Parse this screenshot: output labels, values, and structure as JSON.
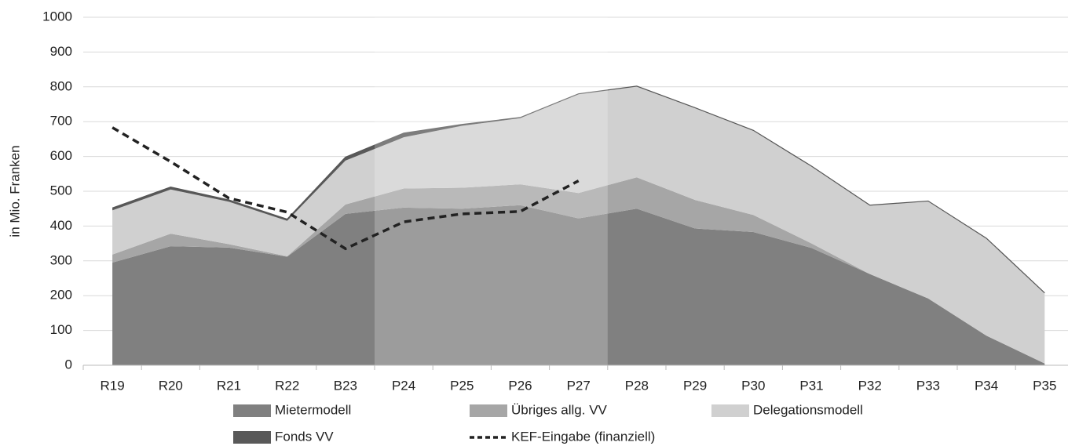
{
  "chart_data": {
    "type": "stacked_area",
    "y_label": "in Mio. Franken",
    "categories": [
      "R19",
      "R20",
      "R21",
      "R22",
      "B23",
      "P24",
      "P25",
      "P26",
      "P27",
      "P28",
      "P29",
      "P30",
      "P31",
      "P32",
      "P33",
      "P34",
      "P35"
    ],
    "series": [
      {
        "name": "Mietermodell",
        "color": "#808080",
        "values": [
          295,
          342,
          338,
          312,
          435,
          453,
          450,
          460,
          422,
          450,
          393,
          383,
          337,
          262,
          192,
          85,
          5
        ]
      },
      {
        "name": "Übriges allg. VV",
        "color": "#a6a6a6",
        "values": [
          23,
          36,
          10,
          1,
          27,
          55,
          60,
          60,
          73,
          90,
          82,
          49,
          13,
          0,
          0,
          0,
          0
        ]
      },
      {
        "name": "Delegationsmodell",
        "color": "#d0d0d0",
        "values": [
          127,
          127,
          122,
          102,
          126,
          147,
          178,
          190,
          285,
          262,
          265,
          243,
          222,
          198,
          280,
          280,
          203
        ]
      },
      {
        "name": "Fonds VV",
        "color": "#595959",
        "values": [
          7,
          7,
          5,
          5,
          10,
          12,
          4,
          2,
          0,
          0,
          0,
          0,
          0,
          0,
          0,
          0,
          0
        ]
      }
    ],
    "line": {
      "name": "KEF-Eingabe (finanziell)",
      "color": "#222222",
      "values": [
        683,
        585,
        480,
        440,
        335,
        412,
        435,
        442,
        530,
        null,
        null,
        null,
        null,
        null,
        null,
        null,
        null
      ]
    },
    "ylim": [
      0,
      1000
    ],
    "yticks": [
      0,
      100,
      200,
      300,
      400,
      500,
      600,
      700,
      800,
      900,
      1000
    ],
    "grid": true
  }
}
